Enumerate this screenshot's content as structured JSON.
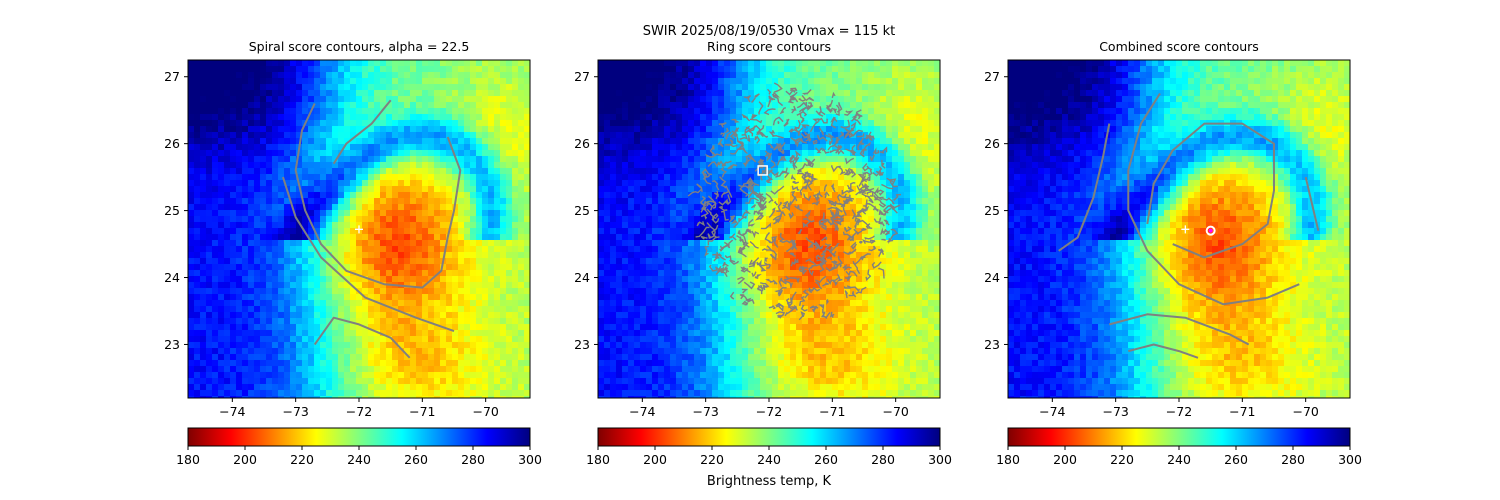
{
  "figure": {
    "suptitle_line1": "SWIR  2025/08/19/0530    Vmax = 115 kt",
    "colorbar_label": "Brightness temp, K"
  },
  "colormap": {
    "name": "jet",
    "direction": "reversed",
    "stops": [
      "#7f0000",
      "#ff0000",
      "#ff8000",
      "#ffff00",
      "#80ff80",
      "#00ffff",
      "#0080ff",
      "#0000ff",
      "#00007f"
    ]
  },
  "colors": {
    "contour": "#808080",
    "marker": "#ffffff",
    "center_marker": "#ff00ff"
  },
  "chart_data": [
    {
      "type": "heatmap",
      "title": "Spiral score contours, alpha = 22.5",
      "xlim": [
        -74.7,
        -69.3
      ],
      "ylim": [
        22.2,
        27.25
      ],
      "xticks": [
        -74,
        -73,
        -72,
        -71,
        -70
      ],
      "yticks": [
        23,
        24,
        25,
        26,
        27
      ],
      "colorbar": {
        "min": 180,
        "max": 300,
        "ticks": [
          180,
          200,
          220,
          240,
          260,
          280,
          300
        ]
      },
      "markers": [
        {
          "shape": "plus",
          "x": -72.0,
          "y": 24.72
        }
      ],
      "contours": [
        [
          [
            -72.7,
            26.6
          ],
          [
            -72.9,
            26.2
          ],
          [
            -73.0,
            25.6
          ],
          [
            -72.85,
            25.0
          ],
          [
            -72.6,
            24.5
          ],
          [
            -72.2,
            24.1
          ],
          [
            -71.6,
            23.9
          ],
          [
            -71.0,
            23.85
          ],
          [
            -70.7,
            24.1
          ],
          [
            -70.6,
            24.6
          ],
          [
            -70.5,
            25.0
          ],
          [
            -70.4,
            25.6
          ],
          [
            -70.6,
            26.1
          ]
        ],
        [
          [
            -72.7,
            23.0
          ],
          [
            -72.4,
            23.4
          ],
          [
            -72.0,
            23.3
          ],
          [
            -71.5,
            23.1
          ],
          [
            -71.2,
            22.8
          ]
        ],
        [
          [
            -73.2,
            25.5
          ],
          [
            -73.0,
            24.9
          ],
          [
            -72.6,
            24.3
          ],
          [
            -71.9,
            23.7
          ],
          [
            -71.1,
            23.4
          ],
          [
            -70.5,
            23.2
          ]
        ],
        [
          [
            -71.5,
            26.65
          ],
          [
            -71.8,
            26.3
          ],
          [
            -72.2,
            26.0
          ],
          [
            -72.4,
            25.7
          ]
        ]
      ]
    },
    {
      "type": "heatmap",
      "title": "Ring score contours",
      "xlim": [
        -74.7,
        -69.3
      ],
      "ylim": [
        22.2,
        27.25
      ],
      "xticks": [
        -74,
        -73,
        -72,
        -71,
        -70
      ],
      "yticks": [
        23,
        24,
        25,
        26,
        27
      ],
      "colorbar": {
        "min": 180,
        "max": 300,
        "ticks": [
          180,
          200,
          220,
          240,
          260,
          280,
          300
        ]
      },
      "markers": [
        {
          "shape": "square",
          "x": -72.1,
          "y": 25.6
        }
      ],
      "ring_region": {
        "cx": -71.55,
        "cy": 25.1,
        "rx": 1.55,
        "ry": 1.75
      }
    },
    {
      "type": "heatmap",
      "title": "Combined score contours",
      "xlim": [
        -74.7,
        -69.3
      ],
      "ylim": [
        22.2,
        27.25
      ],
      "xticks": [
        -74,
        -73,
        -72,
        -71,
        -70
      ],
      "yticks": [
        23,
        24,
        25,
        26,
        27
      ],
      "colorbar": {
        "min": 180,
        "max": 300,
        "ticks": [
          180,
          200,
          220,
          240,
          260,
          280,
          300
        ]
      },
      "markers": [
        {
          "shape": "plus",
          "x": -71.9,
          "y": 24.72
        },
        {
          "shape": "ring",
          "x": -71.5,
          "y": 24.7
        }
      ],
      "contours": [
        [
          [
            -73.9,
            24.4
          ],
          [
            -73.6,
            24.6
          ],
          [
            -73.35,
            25.2
          ],
          [
            -73.2,
            25.8
          ],
          [
            -73.1,
            26.3
          ]
        ],
        [
          [
            -72.3,
            26.75
          ],
          [
            -72.6,
            26.3
          ],
          [
            -72.8,
            25.6
          ],
          [
            -72.8,
            25.0
          ],
          [
            -72.5,
            24.4
          ],
          [
            -72.0,
            23.9
          ],
          [
            -71.3,
            23.6
          ],
          [
            -70.6,
            23.7
          ],
          [
            -70.1,
            23.9
          ]
        ],
        [
          [
            -72.5,
            24.8
          ],
          [
            -72.4,
            25.4
          ],
          [
            -72.1,
            25.9
          ],
          [
            -71.6,
            26.3
          ],
          [
            -71.0,
            26.3
          ],
          [
            -70.5,
            26.0
          ],
          [
            -70.5,
            25.3
          ],
          [
            -70.6,
            24.8
          ],
          [
            -71.0,
            24.5
          ],
          [
            -71.6,
            24.3
          ],
          [
            -72.1,
            24.5
          ]
        ],
        [
          [
            -73.1,
            23.3
          ],
          [
            -72.5,
            23.45
          ],
          [
            -71.9,
            23.4
          ],
          [
            -71.2,
            23.15
          ],
          [
            -70.9,
            23.0
          ]
        ],
        [
          [
            -72.8,
            22.9
          ],
          [
            -72.4,
            23.0
          ],
          [
            -72.0,
            22.9
          ],
          [
            -71.7,
            22.8
          ]
        ],
        [
          [
            -70.0,
            25.5
          ],
          [
            -69.9,
            25.1
          ],
          [
            -69.8,
            24.7
          ]
        ]
      ]
    }
  ]
}
